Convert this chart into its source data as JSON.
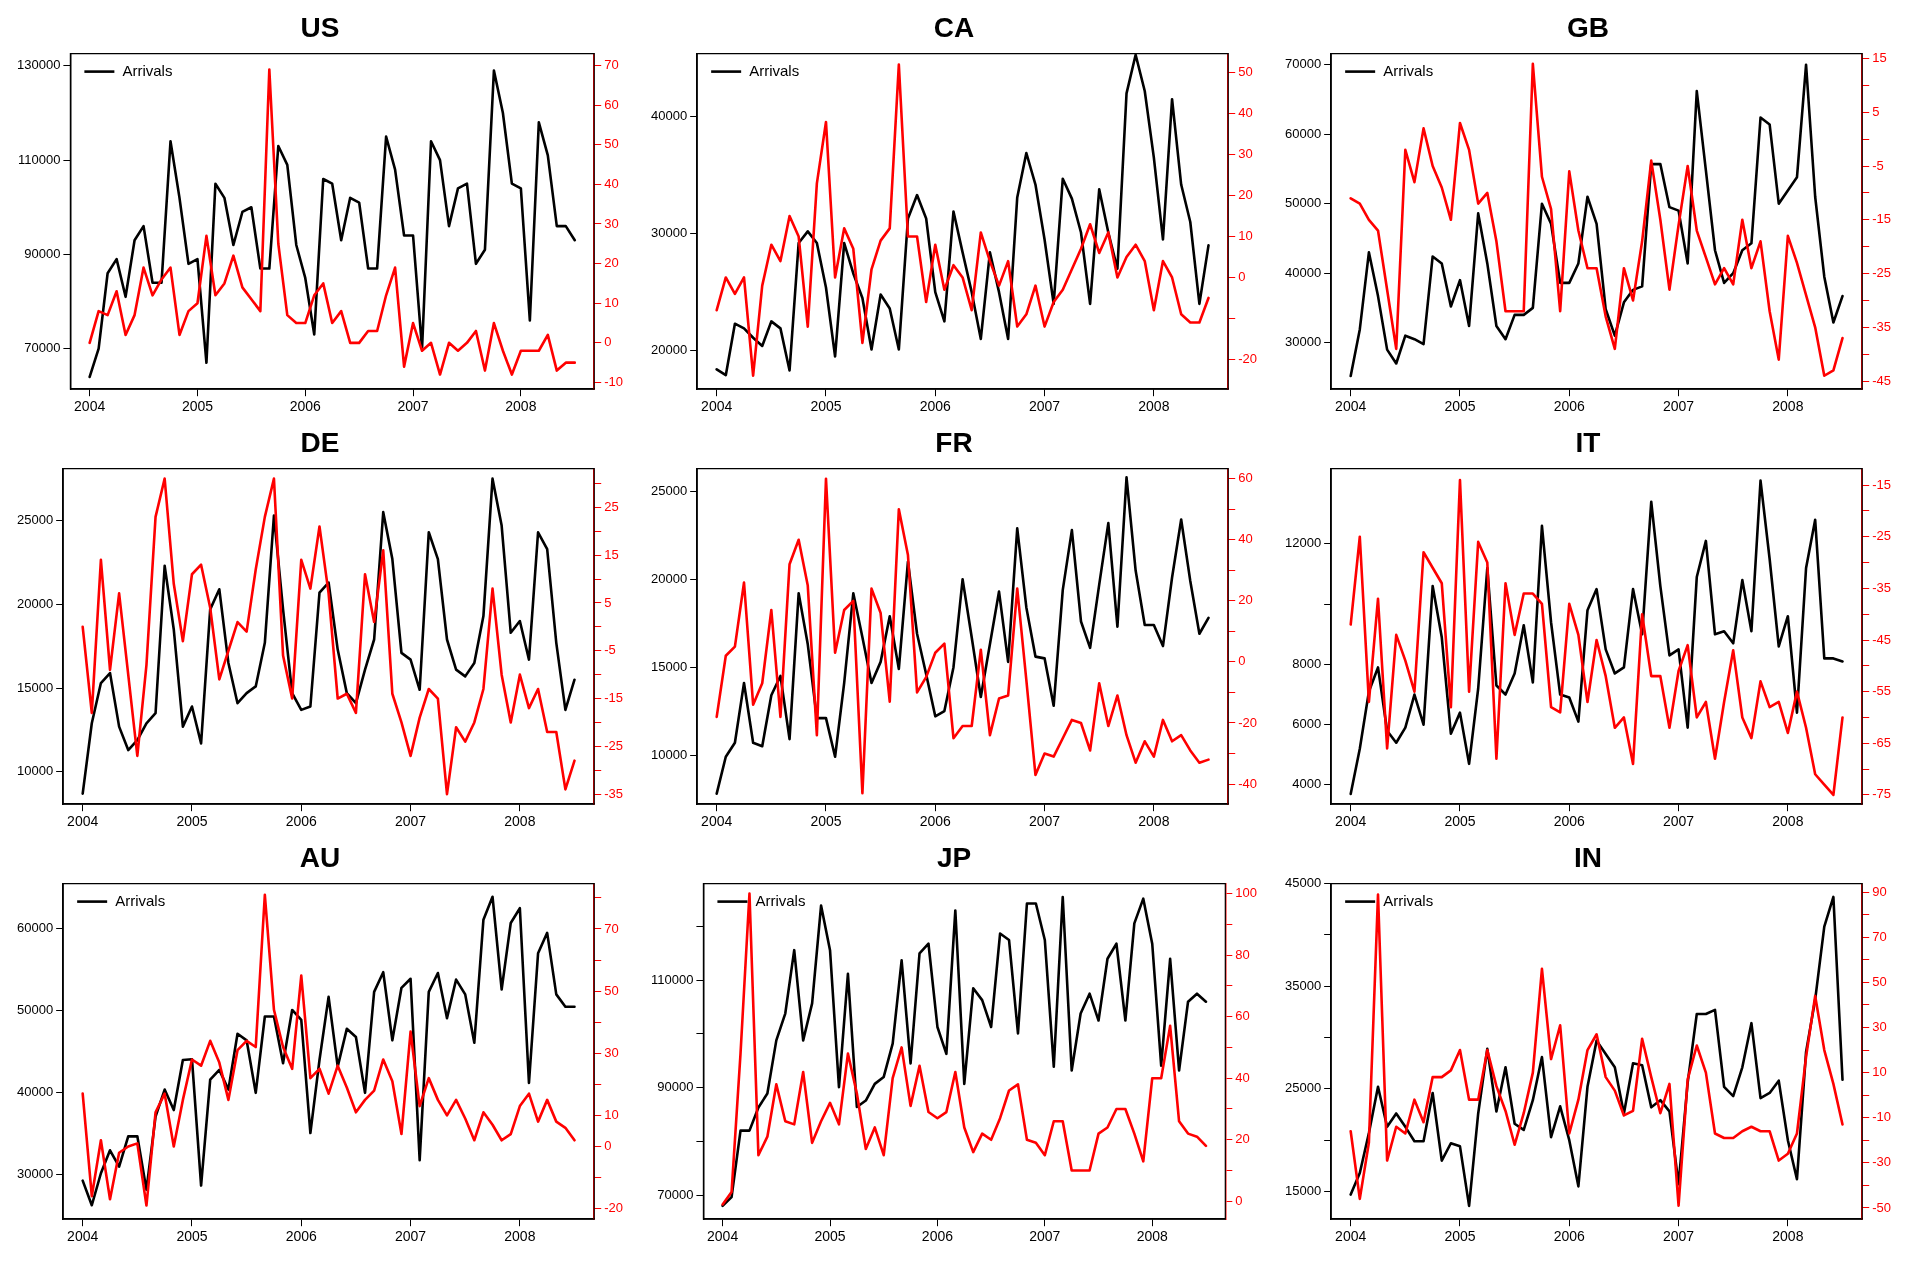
{
  "chart_data": [
    {
      "type": "line",
      "title": "US",
      "legend": "top left",
      "x": [
        "2004-01",
        "2004-02",
        "2004-03",
        "2004-04",
        "2004-05",
        "2004-06",
        "2004-07",
        "2004-08",
        "2004-09",
        "2004-10",
        "2004-11",
        "2004-12",
        "2005-01",
        "2005-02",
        "2005-03",
        "2005-04",
        "2005-05",
        "2005-06",
        "2005-07",
        "2005-08",
        "2005-09",
        "2005-10",
        "2005-11",
        "2005-12",
        "2006-01",
        "2006-02",
        "2006-03",
        "2006-04",
        "2006-05",
        "2006-06",
        "2006-07",
        "2006-08",
        "2006-09",
        "2006-10",
        "2006-11",
        "2006-12",
        "2007-01",
        "2007-02",
        "2007-03",
        "2007-04",
        "2007-05",
        "2007-06",
        "2007-07",
        "2007-08",
        "2007-09",
        "2007-10",
        "2007-11",
        "2007-12",
        "2008-01",
        "2008-02",
        "2008-03",
        "2008-04",
        "2008-05",
        "2008-06",
        "2008-07"
      ],
      "xlim": [
        "2003-10-27",
        "2008-09-06"
      ],
      "xticks": [
        "2004",
        "2005",
        "2006",
        "2007",
        "2008"
      ],
      "ylim": [
        61400,
        132600
      ],
      "yticks": [
        70000,
        90000,
        110000,
        130000
      ],
      "y2lim": [
        -11.7,
        73
      ],
      "y2ticks": [
        -10,
        0,
        10,
        20,
        30,
        40,
        50,
        60,
        70
      ],
      "series": [
        {
          "name": "Arrivals",
          "color": "#000000",
          "values": [
            64000,
            70000,
            86000,
            89000,
            81000,
            93000,
            96000,
            84000,
            84000,
            114000,
            102000,
            88000,
            89000,
            67000,
            105000,
            102000,
            92000,
            99000,
            100000,
            87000,
            87000,
            113000,
            109000,
            92000,
            85000,
            73000,
            106000,
            105000,
            93000,
            102000,
            101000,
            87000,
            87000,
            115000,
            108000,
            94000,
            94000,
            70000,
            114000,
            110000,
            96000,
            104000,
            105000,
            88000,
            91000,
            129000,
            120000,
            105000,
            104000,
            76000,
            118000,
            111000,
            96000,
            96000,
            93000
          ]
        },
        {
          "color": "#ff0000",
          "axis": "y2",
          "values": [
            0,
            8,
            7,
            13,
            2,
            7,
            19,
            12,
            16,
            19,
            2,
            8,
            10,
            27,
            12,
            15,
            22,
            14,
            11,
            8,
            69,
            25,
            7,
            5,
            5,
            12,
            15,
            5,
            8,
            0,
            0,
            3,
            3,
            12,
            19,
            -6,
            5,
            -2,
            0,
            -8,
            0,
            -2,
            0,
            3,
            -7,
            5,
            -2,
            -8,
            -2,
            -2,
            -2,
            2,
            -7,
            -5,
            -5
          ]
        }
      ]
    },
    {
      "type": "line",
      "title": "CA",
      "legend": "top left",
      "x": [
        "2004-01",
        "2004-02",
        "2004-03",
        "2004-04",
        "2004-05",
        "2004-06",
        "2004-07",
        "2004-08",
        "2004-09",
        "2004-10",
        "2004-11",
        "2004-12",
        "2005-01",
        "2005-02",
        "2005-03",
        "2005-04",
        "2005-05",
        "2005-06",
        "2005-07",
        "2005-08",
        "2005-09",
        "2005-10",
        "2005-11",
        "2005-12",
        "2006-01",
        "2006-02",
        "2006-03",
        "2006-04",
        "2006-05",
        "2006-06",
        "2006-07",
        "2006-08",
        "2006-09",
        "2006-10",
        "2006-11",
        "2006-12",
        "2007-01",
        "2007-02",
        "2007-03",
        "2007-04",
        "2007-05",
        "2007-06",
        "2007-07",
        "2007-08",
        "2007-09",
        "2007-10",
        "2007-11",
        "2007-12",
        "2008-01",
        "2008-02",
        "2008-03",
        "2008-04",
        "2008-05",
        "2008-06",
        "2008-07"
      ],
      "xlim": [
        "2003-10-27",
        "2008-09-06"
      ],
      "xticks": [
        "2004",
        "2005",
        "2006",
        "2007",
        "2008"
      ],
      "ylim": [
        16700,
        45400
      ],
      "yticks": [
        20000,
        30000,
        40000
      ],
      "y2lim": [
        -27.3,
        54.7
      ],
      "y2ticks": [
        -20,
        {
          "value": -10,
          "label": null
        },
        0,
        10,
        20,
        30,
        40,
        50
      ],
      "series": [
        {
          "name": "Arrivals",
          "color": "#000000",
          "values": [
            18400,
            17900,
            22300,
            21900,
            21100,
            20400,
            22500,
            21900,
            18300,
            29200,
            30200,
            29200,
            25400,
            19500,
            29200,
            26600,
            24500,
            20100,
            24800,
            23600,
            20100,
            31300,
            33300,
            31300,
            25000,
            22500,
            31900,
            28400,
            25000,
            21000,
            28400,
            25000,
            21000,
            33100,
            36900,
            34200,
            29500,
            24000,
            34700,
            33000,
            30100,
            24000,
            33800,
            30100,
            27000,
            42000,
            45300,
            42200,
            36500,
            29500,
            41500,
            34200,
            31000,
            24000,
            29000
          ]
        },
        {
          "color": "#ff0000",
          "axis": "y2",
          "values": [
            -8,
            0,
            -4,
            0,
            -24,
            -2,
            8,
            4,
            15,
            10,
            -12,
            23,
            38,
            0,
            12,
            7,
            -16,
            2,
            9,
            12,
            52,
            10,
            10,
            -6,
            8,
            -3,
            3,
            0,
            -8,
            11,
            4,
            -2,
            4,
            -12,
            -9,
            -2,
            -12,
            -6,
            -3,
            2,
            7,
            13,
            6,
            11,
            0,
            5,
            8,
            4,
            -8,
            4,
            0,
            -9,
            -11,
            -11,
            -5
          ]
        }
      ]
    },
    {
      "type": "line",
      "title": "GB",
      "legend": "top left",
      "x": [
        "2004-01",
        "2004-02",
        "2004-03",
        "2004-04",
        "2004-05",
        "2004-06",
        "2004-07",
        "2004-08",
        "2004-09",
        "2004-10",
        "2004-11",
        "2004-12",
        "2005-01",
        "2005-02",
        "2005-03",
        "2005-04",
        "2005-05",
        "2005-06",
        "2005-07",
        "2005-08",
        "2005-09",
        "2005-10",
        "2005-11",
        "2005-12",
        "2006-01",
        "2006-02",
        "2006-03",
        "2006-04",
        "2006-05",
        "2006-06",
        "2006-07",
        "2006-08",
        "2006-09",
        "2006-10",
        "2006-11",
        "2006-12",
        "2007-01",
        "2007-02",
        "2007-03",
        "2007-04",
        "2007-05",
        "2007-06",
        "2007-07",
        "2007-08",
        "2007-09",
        "2007-10",
        "2007-11",
        "2007-12",
        "2008-01",
        "2008-02",
        "2008-03",
        "2008-04",
        "2008-05",
        "2008-06",
        "2008-07"
      ],
      "xlim": [
        "2003-10-27",
        "2008-09-06"
      ],
      "xticks": [
        "2004",
        "2005",
        "2006",
        "2007",
        "2008"
      ],
      "ylim": [
        23300,
        71600
      ],
      "yticks": [
        30000,
        40000,
        50000,
        60000,
        70000
      ],
      "y2lim": [
        -46.5,
        15.9
      ],
      "y2ticks": [
        -45,
        {
          "value": -40,
          "label": null
        },
        -35,
        {
          "value": -30,
          "label": null
        },
        -25,
        {
          "value": -20,
          "label": null
        },
        -15,
        {
          "value": -10,
          "label": null
        },
        -5,
        {
          "value": 0,
          "label": null
        },
        5,
        {
          "value": 10,
          "label": null
        },
        15
      ],
      "series": [
        {
          "name": "Arrivals",
          "color": "#000000",
          "values": [
            25200,
            31900,
            43000,
            36700,
            29000,
            27000,
            31000,
            30500,
            29800,
            42400,
            41400,
            35200,
            39000,
            32400,
            48600,
            41400,
            32400,
            30500,
            34000,
            34000,
            35000,
            50000,
            47100,
            38600,
            38600,
            41400,
            51000,
            47100,
            34800,
            31000,
            35800,
            37600,
            38100,
            55700,
            55700,
            49500,
            49000,
            41400,
            66200,
            54800,
            43300,
            38600,
            40000,
            43300,
            44300,
            62400,
            61400,
            50000,
            51900,
            53800,
            70000,
            51000,
            39500,
            32900,
            36700
          ]
        },
        {
          "color": "#ff0000",
          "axis": "y2",
          "values": [
            -11,
            -12,
            -15,
            -17,
            -28,
            -39,
            -2,
            -8,
            2,
            -5,
            -9,
            -15,
            3,
            -2,
            -12,
            -10,
            -19,
            -32,
            -32,
            -32,
            14,
            -7,
            -13,
            -32,
            -6,
            -17,
            -24,
            -24,
            -33,
            -39,
            -24,
            -30,
            -19,
            -4,
            -15,
            -28,
            -16,
            -5,
            -17,
            -22,
            -27,
            -24,
            -27,
            -15,
            -24,
            -19,
            -32,
            -41,
            -18,
            -23,
            -29,
            -35,
            -44,
            -43,
            -37
          ]
        }
      ]
    },
    {
      "type": "line",
      "title": "DE",
      "x": [
        "2004-01",
        "2004-02",
        "2004-03",
        "2004-04",
        "2004-05",
        "2004-06",
        "2004-07",
        "2004-08",
        "2004-09",
        "2004-10",
        "2004-11",
        "2004-12",
        "2005-01",
        "2005-02",
        "2005-03",
        "2005-04",
        "2005-05",
        "2005-06",
        "2005-07",
        "2005-08",
        "2005-09",
        "2005-10",
        "2005-11",
        "2005-12",
        "2006-01",
        "2006-02",
        "2006-03",
        "2006-04",
        "2006-05",
        "2006-06",
        "2006-07",
        "2006-08",
        "2006-09",
        "2006-10",
        "2006-11",
        "2006-12",
        "2007-01",
        "2007-02",
        "2007-03",
        "2007-04",
        "2007-05",
        "2007-06",
        "2007-07",
        "2007-08",
        "2007-09",
        "2007-10",
        "2007-11",
        "2007-12",
        "2008-01",
        "2008-02",
        "2008-03",
        "2008-04",
        "2008-05",
        "2008-06",
        "2008-07"
      ],
      "xlim": [
        "2003-10-27",
        "2008-09-06"
      ],
      "xticks": [
        "2004",
        "2005",
        "2006",
        "2007",
        "2008"
      ],
      "ylim": [
        8070,
        28100
      ],
      "yticks": [
        10000,
        15000,
        20000,
        25000
      ],
      "y2lim": [
        -37.1,
        33.1
      ],
      "y2ticks": [
        -35,
        {
          "value": -30,
          "label": null
        },
        -25,
        {
          "value": -20,
          "label": null
        },
        -15,
        {
          "value": -10,
          "label": null
        },
        -5,
        {
          "value": 0,
          "label": null
        },
        5,
        {
          "value": 10,
          "label": null
        },
        15,
        {
          "value": 20,
          "label": null
        },
        25,
        {
          "value": 30,
          "label": null
        }
      ],
      "series": [
        {
          "color": "#000000",
          "values": [
            8700,
            12900,
            15300,
            15900,
            12700,
            11300,
            11900,
            12900,
            13500,
            22300,
            18500,
            12700,
            13900,
            11700,
            19700,
            20900,
            16500,
            14100,
            14700,
            15100,
            17700,
            25300,
            19700,
            14700,
            13700,
            13900,
            20700,
            21300,
            17300,
            14700,
            14100,
            16100,
            17900,
            25500,
            22700,
            17100,
            16700,
            14900,
            24300,
            22700,
            17900,
            16100,
            15700,
            16500,
            19300,
            27500,
            24700,
            18300,
            19000,
            16700,
            24300,
            23300,
            17700,
            13700,
            15500
          ]
        },
        {
          "color": "#ff0000",
          "axis": "y2",
          "values": [
            0,
            -18,
            14,
            -9,
            7,
            -10,
            -27,
            -8,
            23,
            31,
            9,
            -3,
            11,
            13,
            4,
            -11,
            -5,
            1,
            -1,
            12,
            23,
            31,
            -6,
            -15,
            14,
            8,
            21,
            7,
            -15,
            -14,
            -18,
            11,
            1,
            16,
            -14,
            -20,
            -27,
            -19,
            -13,
            -15,
            -35,
            -21,
            -24,
            -20,
            -13,
            8,
            -10,
            -20,
            -10,
            -17,
            -13,
            -22,
            -22,
            -34,
            -28
          ]
        }
      ]
    },
    {
      "type": "line",
      "title": "FR",
      "x": [
        "2004-01",
        "2004-02",
        "2004-03",
        "2004-04",
        "2004-05",
        "2004-06",
        "2004-07",
        "2004-08",
        "2004-09",
        "2004-10",
        "2004-11",
        "2004-12",
        "2005-01",
        "2005-02",
        "2005-03",
        "2005-04",
        "2005-05",
        "2005-06",
        "2005-07",
        "2005-08",
        "2005-09",
        "2005-10",
        "2005-11",
        "2005-12",
        "2006-01",
        "2006-02",
        "2006-03",
        "2006-04",
        "2006-05",
        "2006-06",
        "2006-07",
        "2006-08",
        "2006-09",
        "2006-10",
        "2006-11",
        "2006-12",
        "2007-01",
        "2007-02",
        "2007-03",
        "2007-04",
        "2007-05",
        "2007-06",
        "2007-07",
        "2007-08",
        "2007-09",
        "2007-10",
        "2007-11",
        "2007-12",
        "2008-01",
        "2008-02",
        "2008-03",
        "2008-04",
        "2008-05",
        "2008-06",
        "2008-07"
      ],
      "xlim": [
        "2003-10-27",
        "2008-09-06"
      ],
      "xticks": [
        "2004",
        "2005",
        "2006",
        "2007",
        "2008"
      ],
      "ylim": [
        7200,
        26300
      ],
      "yticks": [
        10000,
        15000,
        20000,
        25000
      ],
      "y2lim": [
        -46.6,
        63.3
      ],
      "y2ticks": [
        -40,
        {
          "value": -30,
          "label": null
        },
        -20,
        {
          "value": -10,
          "label": null
        },
        0,
        {
          "value": 10,
          "label": null
        },
        20,
        {
          "value": 30,
          "label": null
        },
        40,
        {
          "value": 50,
          "label": null
        },
        60
      ],
      "series": [
        {
          "color": "#000000",
          "values": [
            7800,
            9900,
            10700,
            14100,
            10700,
            10500,
            13400,
            14500,
            10900,
            19200,
            16300,
            12100,
            12100,
            9900,
            14100,
            19200,
            16700,
            14100,
            15300,
            17900,
            14900,
            21000,
            16900,
            14600,
            12200,
            12500,
            15000,
            20000,
            16700,
            13300,
            16300,
            19300,
            15300,
            22900,
            18400,
            15600,
            15500,
            12800,
            19400,
            22800,
            17600,
            16100,
            19700,
            23200,
            17300,
            25800,
            20500,
            17400,
            17400,
            16200,
            20100,
            23400,
            19900,
            16900,
            17800
          ]
        },
        {
          "color": "#ff0000",
          "axis": "y2",
          "values": [
            -18,
            2,
            5,
            26,
            -14,
            -7,
            17,
            -18,
            32,
            40,
            25,
            -24,
            60,
            3,
            17,
            20,
            -43,
            24,
            16,
            -13,
            50,
            35,
            -10,
            -5,
            3,
            6,
            -25,
            -21,
            -21,
            4,
            -24,
            -12,
            -11,
            24,
            -6,
            -37,
            -30,
            -31,
            -25,
            -19,
            -20,
            -29,
            -7,
            -21,
            -11,
            -24,
            -33,
            -26,
            -31,
            -19,
            -26,
            -24,
            -29,
            -33,
            -32
          ]
        }
      ]
    },
    {
      "type": "line",
      "title": "IT",
      "x": [
        "2004-01",
        "2004-02",
        "2004-03",
        "2004-04",
        "2004-05",
        "2004-06",
        "2004-07",
        "2004-08",
        "2004-09",
        "2004-10",
        "2004-11",
        "2004-12",
        "2005-01",
        "2005-02",
        "2005-03",
        "2005-04",
        "2005-05",
        "2005-06",
        "2005-07",
        "2005-08",
        "2005-09",
        "2005-10",
        "2005-11",
        "2005-12",
        "2006-01",
        "2006-02",
        "2006-03",
        "2006-04",
        "2006-05",
        "2006-06",
        "2006-07",
        "2006-08",
        "2006-09",
        "2006-10",
        "2006-11",
        "2006-12",
        "2007-01",
        "2007-02",
        "2007-03",
        "2007-04",
        "2007-05",
        "2007-06",
        "2007-07",
        "2007-08",
        "2007-09",
        "2007-10",
        "2007-11",
        "2007-12",
        "2008-01",
        "2008-02",
        "2008-03",
        "2008-04",
        "2008-05",
        "2008-06",
        "2008-07"
      ],
      "xlim": [
        "2003-10-27",
        "2008-09-06"
      ],
      "xticks": [
        "2004",
        "2005",
        "2006",
        "2007",
        "2008"
      ],
      "ylim": [
        3360,
        14500
      ],
      "yticks": [
        4000,
        6000,
        8000,
        {
          "value": 10000,
          "label": null
        },
        12000
      ],
      "y2lim": [
        -76.8,
        -11.8
      ],
      "y2ticks": [
        -75,
        {
          "value": -70,
          "label": null
        },
        -65,
        {
          "value": -60,
          "label": null
        },
        -55,
        {
          "value": -50,
          "label": null
        },
        -45,
        {
          "value": -40,
          "label": null
        },
        -35,
        {
          "value": -30,
          "label": null
        },
        -25,
        {
          "value": -20,
          "label": null
        },
        -15
      ],
      "series": [
        {
          "color": "#000000",
          "values": [
            3700,
            5200,
            7100,
            7900,
            5800,
            5400,
            5900,
            7000,
            6000,
            10600,
            8900,
            5700,
            6400,
            4700,
            7200,
            11200,
            7300,
            7000,
            7700,
            9300,
            7400,
            12600,
            9400,
            7000,
            6900,
            6100,
            9800,
            10500,
            8500,
            7700,
            7900,
            10500,
            9000,
            13400,
            10600,
            8300,
            8500,
            5900,
            10900,
            12100,
            9000,
            9100,
            8700,
            10800,
            9100,
            14100,
            11500,
            8600,
            9600,
            6400,
            11200,
            12800,
            8200,
            8200,
            8100
          ]
        },
        {
          "color": "#ff0000",
          "axis": "y2",
          "values": [
            -42,
            -25,
            -57,
            -37,
            -66,
            -44,
            -49,
            -55,
            -28,
            -31,
            -34,
            -58,
            -14,
            -55,
            -26,
            -30,
            -68,
            -34,
            -44,
            -36,
            -36,
            -38,
            -58,
            -59,
            -38,
            -44,
            -57,
            -45,
            -52,
            -62,
            -60,
            -69,
            -40,
            -52,
            -52,
            -62,
            -51,
            -46,
            -60,
            -57,
            -68,
            -57,
            -47,
            -60,
            -64,
            -53,
            -58,
            -57,
            -63,
            -55,
            -62,
            -71,
            -73,
            -75,
            -60
          ]
        }
      ]
    },
    {
      "type": "line",
      "title": "AU",
      "legend": "top left",
      "x": [
        "2004-01",
        "2004-02",
        "2004-03",
        "2004-04",
        "2004-05",
        "2004-06",
        "2004-07",
        "2004-08",
        "2004-09",
        "2004-10",
        "2004-11",
        "2004-12",
        "2005-01",
        "2005-02",
        "2005-03",
        "2005-04",
        "2005-05",
        "2005-06",
        "2005-07",
        "2005-08",
        "2005-09",
        "2005-10",
        "2005-11",
        "2005-12",
        "2006-01",
        "2006-02",
        "2006-03",
        "2006-04",
        "2006-05",
        "2006-06",
        "2006-07",
        "2006-08",
        "2006-09",
        "2006-10",
        "2006-11",
        "2006-12",
        "2007-01",
        "2007-02",
        "2007-03",
        "2007-04",
        "2007-05",
        "2007-06",
        "2007-07",
        "2007-08",
        "2007-09",
        "2007-10",
        "2007-11",
        "2007-12",
        "2008-01",
        "2008-02",
        "2008-03",
        "2008-04",
        "2008-05",
        "2008-06",
        "2008-07"
      ],
      "xlim": [
        "2003-10-27",
        "2008-09-06"
      ],
      "xticks": [
        "2004",
        "2005",
        "2006",
        "2007",
        "2008"
      ],
      "ylim": [
        24600,
        65500
      ],
      "yticks": [
        30000,
        40000,
        50000,
        60000
      ],
      "y2lim": [
        -23.4,
        84.6
      ],
      "y2ticks": [
        -20,
        {
          "value": -10,
          "label": null
        },
        0,
        10,
        {
          "value": 20,
          "label": null
        },
        30,
        {
          "value": 40,
          "label": null
        },
        50,
        {
          "value": 60,
          "label": null
        },
        70,
        {
          "value": 80,
          "label": null
        }
      ],
      "series": [
        {
          "name": "Arrivals",
          "color": "#000000",
          "values": [
            29300,
            26300,
            30200,
            33000,
            31000,
            34700,
            34700,
            28200,
            37100,
            40400,
            37900,
            44000,
            44100,
            28700,
            41600,
            42800,
            40400,
            47200,
            46400,
            40000,
            49300,
            49300,
            43600,
            50100,
            48900,
            35100,
            44000,
            51700,
            43200,
            47800,
            46800,
            40000,
            52300,
            54700,
            46400,
            52800,
            53900,
            31800,
            52300,
            54600,
            49100,
            53800,
            52000,
            46100,
            61100,
            63900,
            52600,
            60700,
            62500,
            41200,
            57000,
            59500,
            52000,
            50500,
            50500
          ]
        },
        {
          "color": "#ff0000",
          "axis": "y2",
          "values": [
            17,
            -16,
            2,
            -17,
            -2,
            0,
            1,
            -19,
            11,
            17,
            0,
            15,
            28,
            26,
            34,
            27,
            15,
            31,
            34,
            32,
            81,
            44,
            32,
            25,
            55,
            22,
            25,
            17,
            26,
            19,
            11,
            15,
            18,
            28,
            21,
            4,
            37,
            13,
            22,
            15,
            10,
            15,
            9,
            2,
            11,
            7,
            2,
            4,
            13,
            17,
            8,
            15,
            8,
            6,
            2
          ]
        }
      ]
    },
    {
      "type": "line",
      "title": "JP",
      "legend": "top left",
      "x": [
        "2004-01",
        "2004-02",
        "2004-03",
        "2004-04",
        "2004-05",
        "2004-06",
        "2004-07",
        "2004-08",
        "2004-09",
        "2004-10",
        "2004-11",
        "2004-12",
        "2005-01",
        "2005-02",
        "2005-03",
        "2005-04",
        "2005-05",
        "2005-06",
        "2005-07",
        "2005-08",
        "2005-09",
        "2005-10",
        "2005-11",
        "2005-12",
        "2006-01",
        "2006-02",
        "2006-03",
        "2006-04",
        "2006-05",
        "2006-06",
        "2006-07",
        "2006-08",
        "2006-09",
        "2006-10",
        "2006-11",
        "2006-12",
        "2007-01",
        "2007-02",
        "2007-03",
        "2007-04",
        "2007-05",
        "2007-06",
        "2007-07",
        "2007-08",
        "2007-09",
        "2007-10",
        "2007-11",
        "2007-12",
        "2008-01",
        "2008-02",
        "2008-03",
        "2008-04",
        "2008-05",
        "2008-06",
        "2008-07"
      ],
      "xlim": [
        "2003-10-27",
        "2008-09-06"
      ],
      "xticks": [
        "2004",
        "2005",
        "2006",
        "2007",
        "2008"
      ],
      "ylim": [
        65500,
        128000
      ],
      "yticks": [
        70000,
        {
          "value": 80000,
          "label": null
        },
        90000,
        {
          "value": 100000,
          "label": null
        },
        110000,
        {
          "value": 120000,
          "label": null
        }
      ],
      "y2lim": [
        -5.8,
        103.2
      ],
      "y2ticks": [
        0,
        {
          "value": 10,
          "label": null
        },
        20,
        {
          "value": 30,
          "label": null
        },
        40,
        {
          "value": 50,
          "label": null
        },
        60,
        {
          "value": 70,
          "label": null
        },
        80,
        {
          "value": 90,
          "label": null
        },
        100
      ],
      "series": [
        {
          "name": "Arrivals",
          "color": "#000000",
          "values": [
            68000,
            69600,
            82000,
            82000,
            86300,
            88900,
            98800,
            103800,
            115600,
            98800,
            105700,
            123900,
            115600,
            90100,
            111200,
            86400,
            87600,
            90700,
            92000,
            98200,
            113700,
            94500,
            115000,
            116800,
            101300,
            96300,
            123000,
            90700,
            108500,
            106300,
            101300,
            118700,
            117500,
            100100,
            124300,
            124300,
            117500,
            93900,
            125500,
            93200,
            103800,
            107500,
            102500,
            114000,
            116800,
            102500,
            120600,
            125200,
            116800,
            94100,
            114000,
            93200,
            106000,
            107500,
            106000
          ]
        },
        {
          "color": "#ff0000",
          "axis": "y2",
          "values": [
            -1,
            3,
            48,
            100,
            15,
            21,
            38,
            26,
            25,
            42,
            19,
            26,
            32,
            25,
            48,
            35,
            17,
            24,
            15,
            40,
            50,
            31,
            44,
            29,
            27,
            29,
            42,
            24,
            16,
            22,
            20,
            27,
            36,
            38,
            20,
            19,
            15,
            26,
            26,
            10,
            10,
            10,
            22,
            24,
            30,
            30,
            22,
            13,
            40,
            40,
            57,
            26,
            22,
            21,
            18
          ]
        }
      ]
    },
    {
      "type": "line",
      "title": "IN",
      "legend": "top left",
      "x": [
        "2004-01",
        "2004-02",
        "2004-03",
        "2004-04",
        "2004-05",
        "2004-06",
        "2004-07",
        "2004-08",
        "2004-09",
        "2004-10",
        "2004-11",
        "2004-12",
        "2005-01",
        "2005-02",
        "2005-03",
        "2005-04",
        "2005-05",
        "2005-06",
        "2005-07",
        "2005-08",
        "2005-09",
        "2005-10",
        "2005-11",
        "2005-12",
        "2006-01",
        "2006-02",
        "2006-03",
        "2006-04",
        "2006-05",
        "2006-06",
        "2006-07",
        "2006-08",
        "2006-09",
        "2006-10",
        "2006-11",
        "2006-12",
        "2007-01",
        "2007-02",
        "2007-03",
        "2007-04",
        "2007-05",
        "2007-06",
        "2007-07",
        "2007-08",
        "2007-09",
        "2007-10",
        "2007-11",
        "2007-12",
        "2008-01",
        "2008-02",
        "2008-03",
        "2008-04",
        "2008-05",
        "2008-06",
        "2008-07"
      ],
      "xlim": [
        "2003-10-27",
        "2008-09-06"
      ],
      "xticks": [
        "2004",
        "2005",
        "2006",
        "2007",
        "2008"
      ],
      "ylim": [
        12300,
        45000
      ],
      "yticks": [
        15000,
        {
          "value": 20000,
          "label": null
        },
        25000,
        {
          "value": 30000,
          "label": null
        },
        35000,
        {
          "value": 40000,
          "label": null
        },
        45000
      ],
      "y2lim": [
        -55,
        93.8
      ],
      "y2ticks": [
        -50,
        {
          "value": -40,
          "label": null
        },
        -30,
        {
          "value": -20,
          "label": null
        },
        -10,
        {
          "value": 0,
          "label": null
        },
        10,
        {
          "value": 20,
          "label": null
        },
        30,
        {
          "value": 40,
          "label": null
        },
        50,
        {
          "value": 60,
          "label": null
        },
        70,
        {
          "value": 80,
          "label": null
        },
        90
      ],
      "series": [
        {
          "name": "Arrivals",
          "color": "#000000",
          "values": [
            14700,
            16800,
            20700,
            25200,
            21300,
            22600,
            21300,
            19900,
            19900,
            24600,
            18000,
            19700,
            19400,
            13600,
            22600,
            28900,
            22800,
            27100,
            21600,
            21000,
            23900,
            28100,
            20300,
            23300,
            20000,
            15500,
            25200,
            29700,
            28400,
            27100,
            22600,
            27500,
            27300,
            23200,
            23900,
            22800,
            15700,
            25600,
            32300,
            32300,
            32700,
            25200,
            24300,
            27100,
            31400,
            24100,
            24600,
            25800,
            20000,
            16200,
            28600,
            33700,
            40800,
            43700,
            25900
          ]
        },
        {
          "color": "#ff0000",
          "axis": "y2",
          "values": [
            -16,
            -46,
            -21,
            89,
            -29,
            -14,
            -17,
            -2,
            -12,
            8,
            8,
            11,
            20,
            -2,
            -2,
            20,
            4,
            -7,
            -22,
            -8,
            10,
            56,
            16,
            31,
            -17,
            -2,
            20,
            27,
            8,
            2,
            -9,
            -7,
            25,
            8,
            -8,
            5,
            -49,
            7,
            22,
            10,
            -17,
            -19,
            -19,
            -16,
            -14,
            -16,
            -16,
            -29,
            -26,
            -17,
            17,
            44,
            20,
            5,
            -13
          ]
        }
      ]
    }
  ]
}
